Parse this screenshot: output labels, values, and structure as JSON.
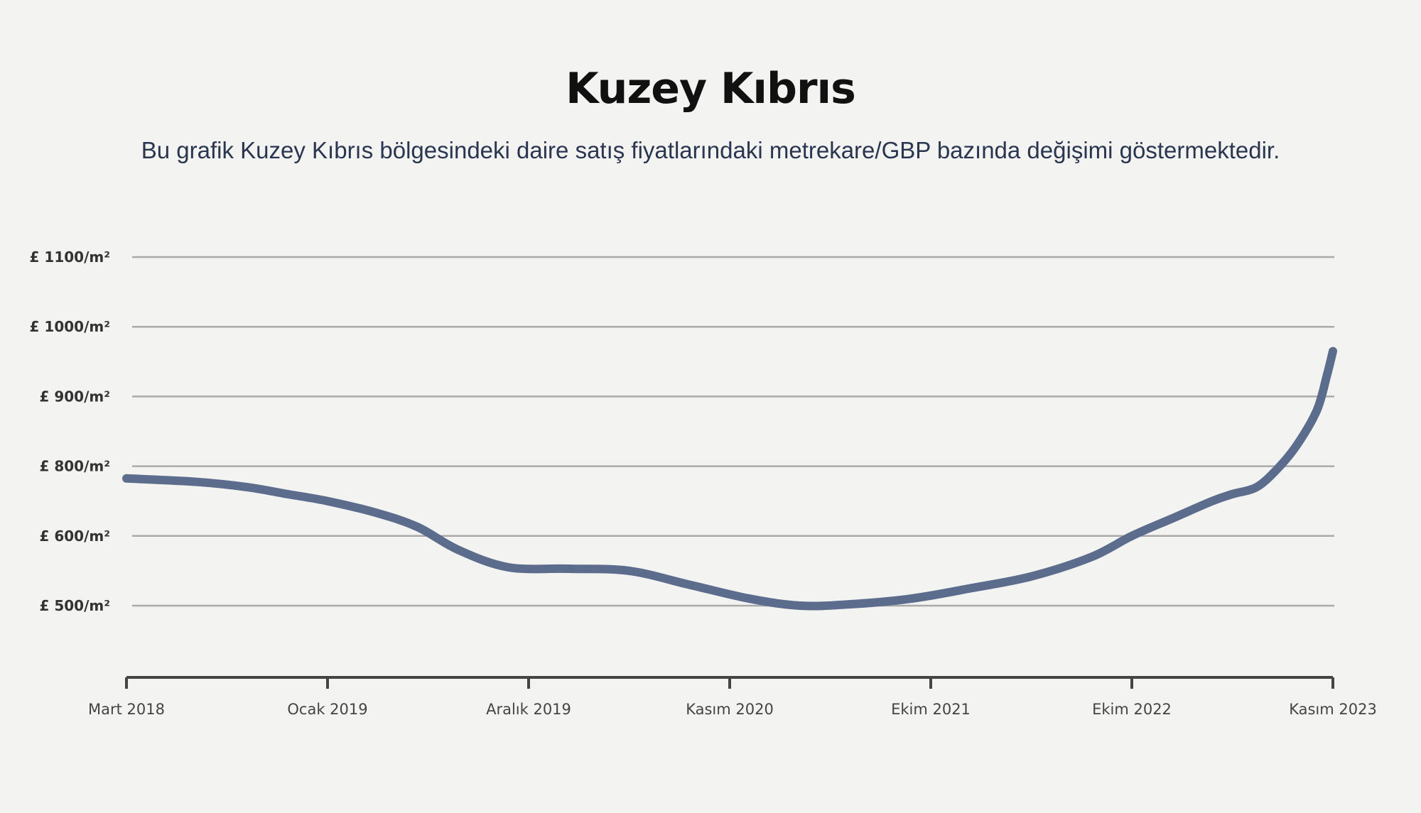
{
  "chart_data": {
    "type": "line",
    "title": "Kuzey Kıbrıs",
    "subtitle": "Bu grafik Kuzey Kıbrıs bölgesindeki daire satış fiyatlarındaki metrekare/GBP bazında değişimi göstermektedir.",
    "xlabel": "",
    "ylabel": "",
    "x_ticks": [
      "Mart 2018",
      "Ocak 2019",
      "Aralık 2019",
      "Kasım 2020",
      "Ekim 2021",
      "Ekim 2022",
      "Kasım 2023"
    ],
    "y_ticks": [
      {
        "label": "£ 500/m²",
        "value": 500
      },
      {
        "label": "£ 600/m²",
        "value": 600
      },
      {
        "label": "£ 800/m²",
        "value": 800
      },
      {
        "label": "£ 900/m²",
        "value": 900
      },
      {
        "label": "£ 1000/m²",
        "value": 1000
      },
      {
        "label": "£ 1100/m²",
        "value": 1100
      }
    ],
    "series": [
      {
        "color": "#5b6c8c",
        "points": [
          [
            0.0,
            765
          ],
          [
            0.35,
            755
          ],
          [
            0.6,
            740
          ],
          [
            0.8,
            720
          ],
          [
            1.0,
            700
          ],
          [
            1.25,
            665
          ],
          [
            1.45,
            625
          ],
          [
            1.65,
            580
          ],
          [
            1.9,
            555
          ],
          [
            2.2,
            553
          ],
          [
            2.5,
            550
          ],
          [
            2.8,
            530
          ],
          [
            3.1,
            510
          ],
          [
            3.35,
            500
          ],
          [
            3.6,
            502
          ],
          [
            3.9,
            510
          ],
          [
            4.2,
            525
          ],
          [
            4.5,
            542
          ],
          [
            4.8,
            570
          ],
          [
            5.0,
            600
          ],
          [
            5.2,
            650
          ],
          [
            5.4,
            700
          ],
          [
            5.5,
            720
          ],
          [
            5.62,
            740
          ],
          [
            5.72,
            790
          ],
          [
            5.82,
            830
          ],
          [
            5.92,
            880
          ],
          [
            5.97,
            930
          ],
          [
            6.0,
            965
          ]
        ]
      }
    ]
  }
}
